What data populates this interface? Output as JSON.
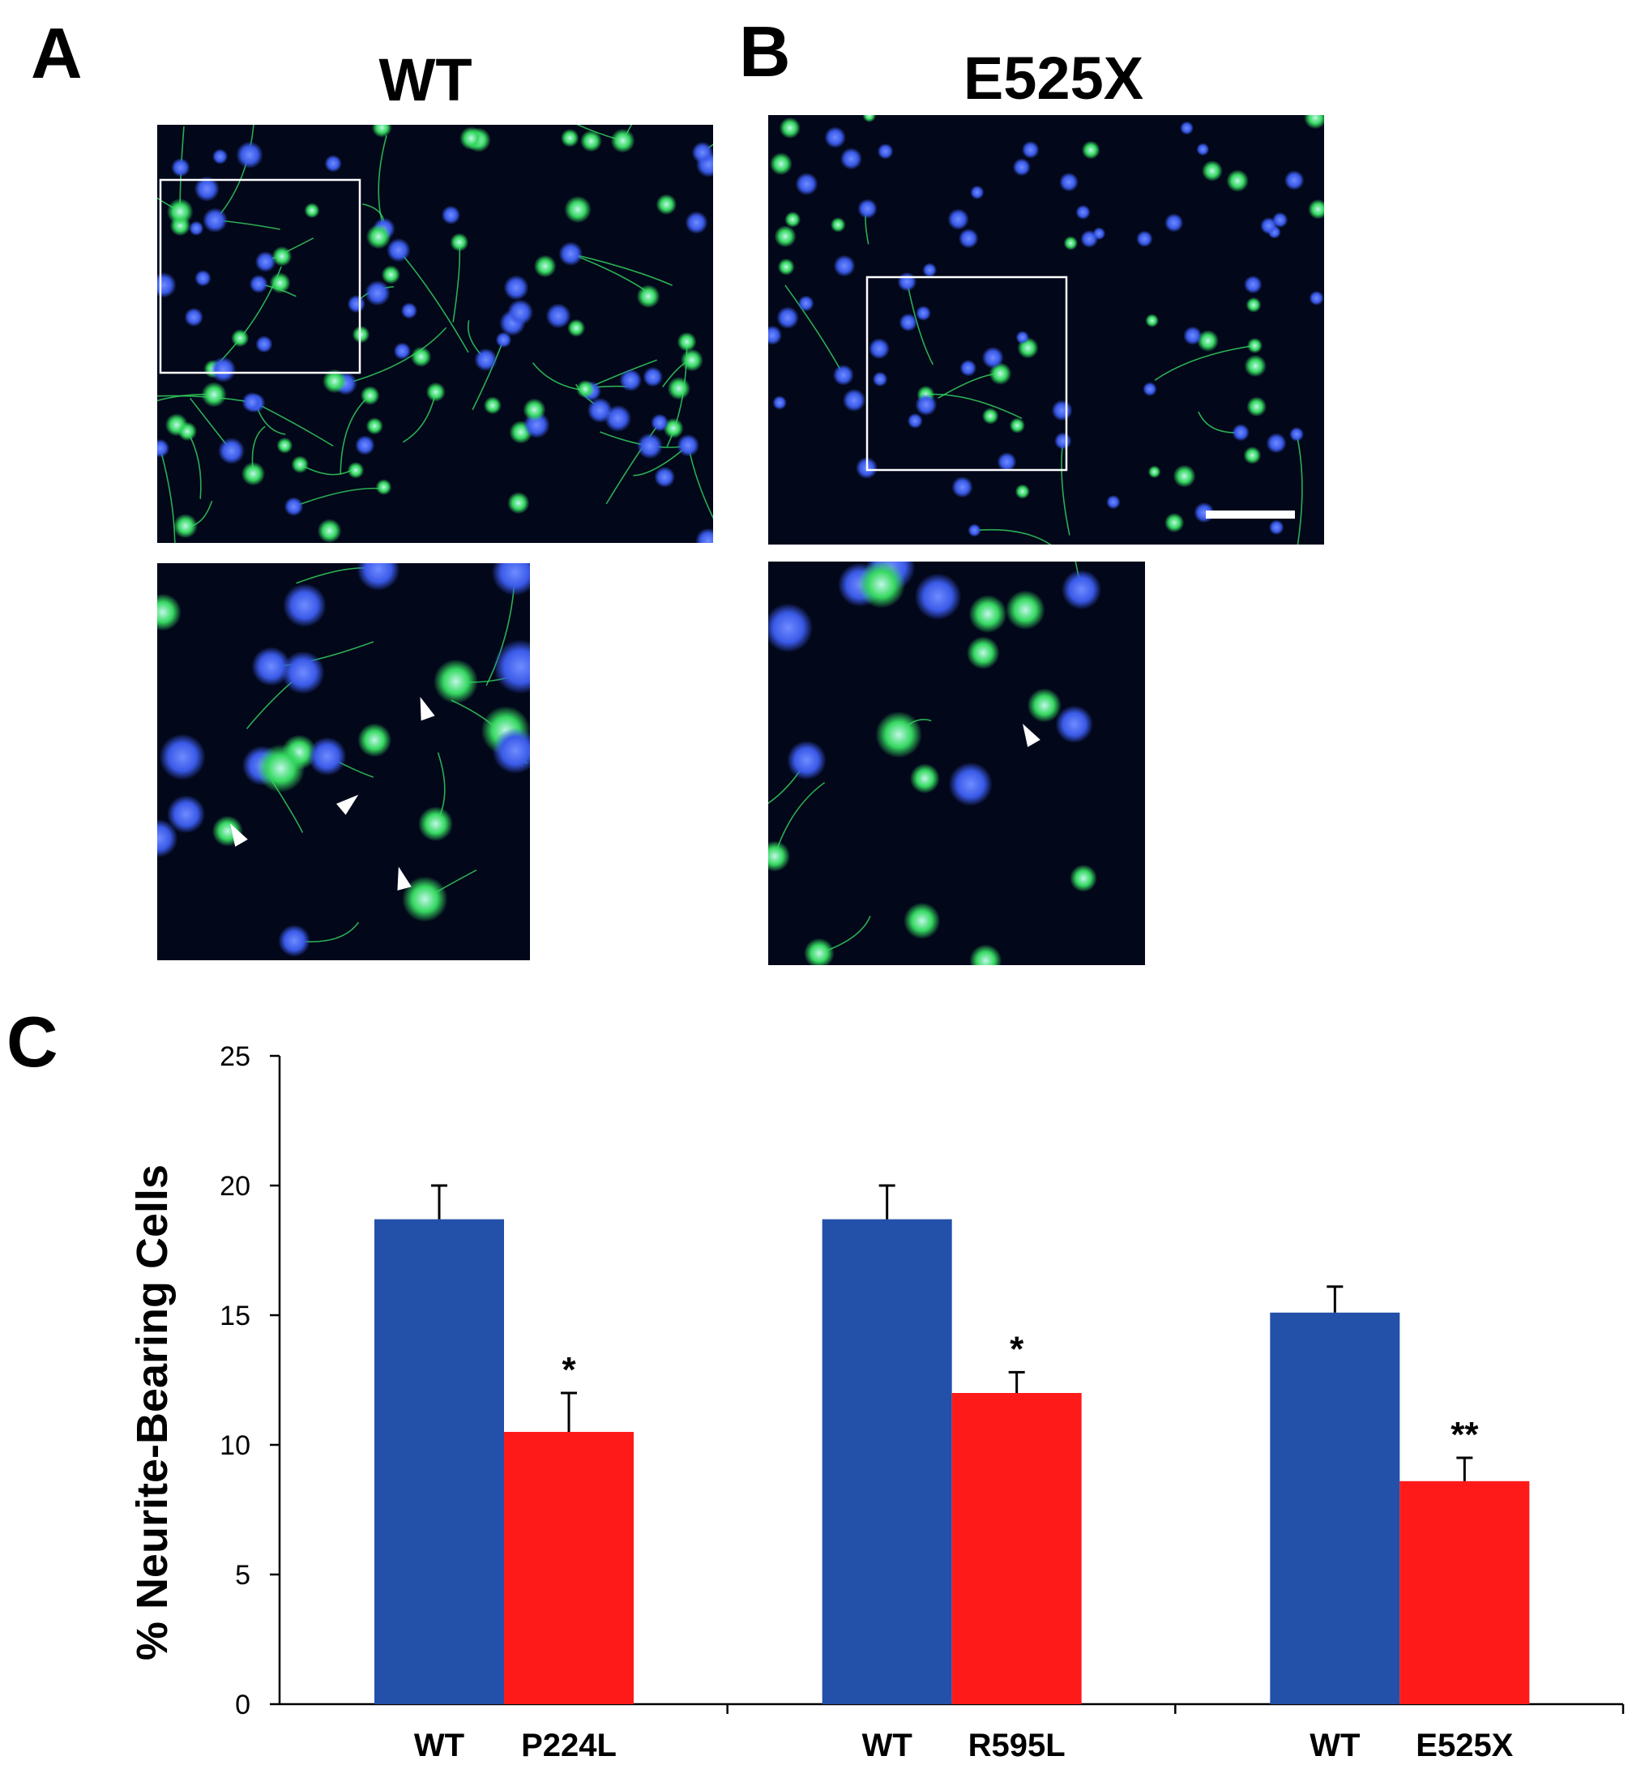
{
  "figure": {
    "panel_a": {
      "letter": "A",
      "title": "WT"
    },
    "panel_b": {
      "letter": "B",
      "title": "E525X"
    },
    "panel_c": {
      "letter": "C"
    }
  },
  "colors": {
    "wt_bar": "#2350A8",
    "mutant_bar": "#FF1A1A",
    "micro_background": "#02071A",
    "neurite_green": "#35D860",
    "nucleus_blue": "#3A5AE8"
  },
  "chart_data": {
    "type": "bar",
    "ylabel": "% Neurite-Bearing Cells",
    "xlabel": "",
    "ylim": [
      0,
      25
    ],
    "yticks": [
      0,
      5,
      10,
      15,
      20,
      25
    ],
    "grid": false,
    "legend": "none",
    "groups": [
      {
        "bars": [
          {
            "label": "WT",
            "value": 18.7,
            "error": 1.3,
            "kind": "wt",
            "annotation": ""
          },
          {
            "label": "P224L",
            "value": 10.5,
            "error": 1.5,
            "kind": "mutant",
            "annotation": "*"
          }
        ]
      },
      {
        "bars": [
          {
            "label": "WT",
            "value": 18.7,
            "error": 1.3,
            "kind": "wt",
            "annotation": ""
          },
          {
            "label": "R595L",
            "value": 12.0,
            "error": 0.8,
            "kind": "mutant",
            "annotation": "*"
          }
        ]
      },
      {
        "bars": [
          {
            "label": "WT",
            "value": 15.1,
            "error": 1.0,
            "kind": "wt",
            "annotation": ""
          },
          {
            "label": "E525X",
            "value": 8.6,
            "error": 0.9,
            "kind": "mutant",
            "annotation": "**"
          }
        ]
      }
    ]
  }
}
